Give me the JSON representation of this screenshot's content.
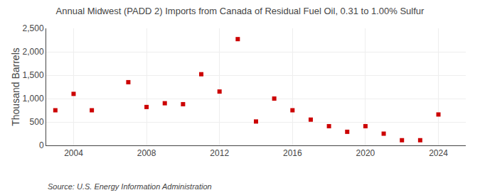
{
  "chart_data": {
    "type": "scatter",
    "title": "Annual Midwest (PADD 2) Imports from Canada of Residual Fuel Oil, 0.31 to 1.00% Sulfur",
    "ylabel": "Thousand Barrels",
    "annotations": [
      "Source: U.S. Energy Information Administration"
    ],
    "x": [
      2003,
      2004,
      2005,
      2007,
      2008,
      2009,
      2010,
      2011,
      2012,
      2013,
      2014,
      2015,
      2016,
      2017,
      2018,
      2019,
      2020,
      2021,
      2022,
      2023,
      2024
    ],
    "values": [
      750,
      1100,
      750,
      1350,
      820,
      900,
      880,
      1520,
      1150,
      2270,
      510,
      1000,
      750,
      550,
      410,
      290,
      410,
      250,
      110,
      110,
      660
    ],
    "color": "#cc0000",
    "marker": "square",
    "xlim": [
      2002.5,
      2025.5
    ],
    "xticks": [
      2004,
      2008,
      2012,
      2016,
      2020,
      2024
    ],
    "ylim": [
      0,
      2500
    ],
    "yticks": [
      0,
      500,
      {
        "value": 1000,
        "label": "1,000"
      },
      {
        "value": 1500,
        "label": "1,500"
      },
      {
        "value": 2000,
        "label": "2,000"
      },
      {
        "value": 2500,
        "label": "2,500"
      }
    ],
    "grid": true
  }
}
